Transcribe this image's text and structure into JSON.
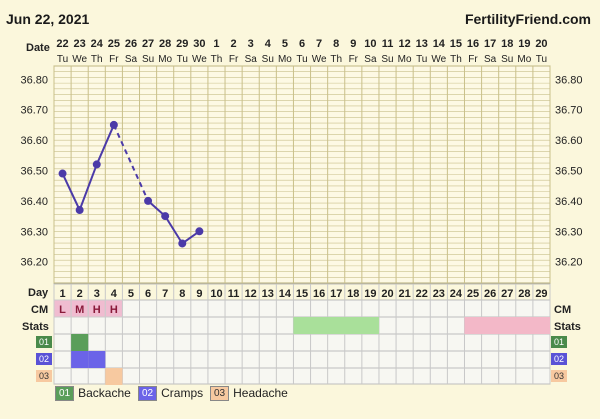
{
  "header": {
    "date_label": "Jun 22, 2021",
    "brand": "FertilityFriend.com"
  },
  "row_labels": {
    "date": "Date",
    "day": "Day",
    "cm": "CM",
    "stats": "Stats",
    "rows": [
      "01",
      "02",
      "03"
    ]
  },
  "colors": {
    "line": "#4b3aa8",
    "grid": "#c9c08a",
    "cm_fill": "#f0bcd0",
    "stats_green": "#a9e09a",
    "stats_pink": "#f3b8c8",
    "backache": "#5a9e5a",
    "cramps": "#6b63e8",
    "headache": "#f7c9a0"
  },
  "chart_data": {
    "type": "line",
    "dates": [
      "22",
      "23",
      "24",
      "25",
      "26",
      "27",
      "28",
      "29",
      "30",
      "1",
      "2",
      "3",
      "4",
      "5",
      "6",
      "7",
      "8",
      "9",
      "10",
      "11",
      "12",
      "13",
      "14",
      "15",
      "16",
      "17",
      "18",
      "19",
      "20"
    ],
    "weekdays": [
      "Tu",
      "We",
      "Th",
      "Fr",
      "Sa",
      "Su",
      "Mo",
      "Tu",
      "We",
      "Th",
      "Fr",
      "Sa",
      "Su",
      "Mo",
      "Tu",
      "We",
      "Th",
      "Fr",
      "Sa",
      "Su",
      "Mo",
      "Tu",
      "We",
      "Th",
      "Fr",
      "Sa",
      "Su",
      "Mo",
      "Tu"
    ],
    "cycle_days": [
      1,
      2,
      3,
      4,
      5,
      6,
      7,
      8,
      9,
      10,
      11,
      12,
      13,
      14,
      15,
      16,
      17,
      18,
      19,
      20,
      21,
      22,
      23,
      24,
      25,
      26,
      27,
      28,
      29
    ],
    "temperatures": [
      36.49,
      36.37,
      36.52,
      36.65,
      null,
      36.4,
      36.35,
      36.26,
      36.3
    ],
    "interpolated_segments": [
      [
        3,
        5
      ]
    ],
    "y_ticks": [
      "36.80",
      "36.70",
      "36.60",
      "36.50",
      "36.40",
      "36.30",
      "36.20"
    ],
    "ylim": [
      36.13,
      36.87
    ],
    "cm": [
      "L",
      "M",
      "H",
      "H"
    ],
    "stats_bands": [
      {
        "from_day": 15,
        "to_day": 19,
        "color": "#a9e09a"
      },
      {
        "from_day": 25,
        "to_day": 29,
        "color": "#f3b8c8"
      }
    ],
    "symptoms": [
      {
        "code": "01",
        "name": "Backache",
        "days": [
          2
        ],
        "color": "#5a9e5a"
      },
      {
        "code": "02",
        "name": "Cramps",
        "days": [
          2,
          3
        ],
        "color": "#6b63e8"
      },
      {
        "code": "03",
        "name": "Headache",
        "days": [
          4
        ],
        "color": "#f7c9a0"
      }
    ]
  }
}
